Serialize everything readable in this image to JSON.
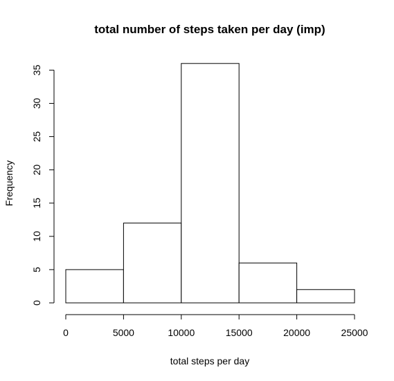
{
  "chart_data": {
    "type": "bar",
    "title": "total number of steps taken per day (imp)",
    "xlabel": "total steps per day",
    "ylabel": "Frequency",
    "bins": [
      {
        "start": 0,
        "end": 5000,
        "count": 5
      },
      {
        "start": 5000,
        "end": 10000,
        "count": 12
      },
      {
        "start": 10000,
        "end": 15000,
        "count": 36
      },
      {
        "start": 15000,
        "end": 20000,
        "count": 6
      },
      {
        "start": 20000,
        "end": 25000,
        "count": 2
      }
    ],
    "xlim": [
      0,
      25000
    ],
    "ylim": [
      0,
      35
    ],
    "xticks": [
      "0",
      "5000",
      "10000",
      "15000",
      "20000",
      "25000"
    ],
    "yticks": [
      "0",
      "5",
      "10",
      "15",
      "20",
      "25",
      "30",
      "35"
    ],
    "grid": false,
    "bar_fill": "#ffffff",
    "bar_stroke": "#000000"
  }
}
